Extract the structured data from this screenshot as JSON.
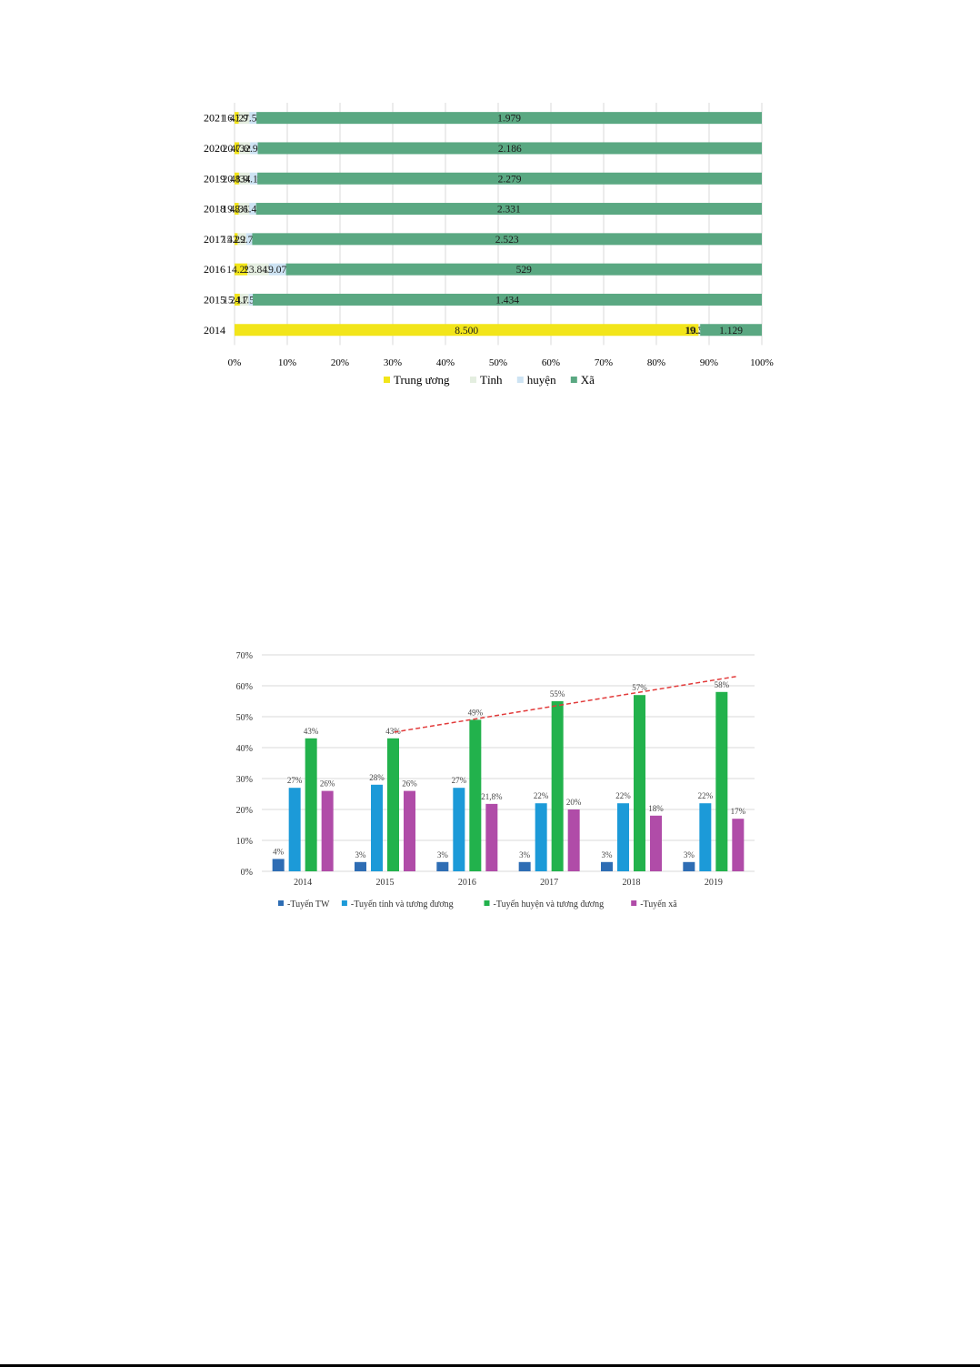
{
  "chart_data": [
    {
      "type": "bar",
      "orientation": "horizontal",
      "stacked": "percent",
      "categories": [
        "2021",
        "2020",
        "2019",
        "2018",
        "2017",
        "2016",
        "2015",
        "2014"
      ],
      "series": [
        {
          "name": "Trung ương",
          "color": "#f2e51a",
          "values": [
            16.351,
            20.032,
            20.182,
            19.268,
            15.415,
            14.296,
            15.105,
            8.5
          ],
          "labels": [
            "16.351",
            "20.032",
            "20.182",
            "19.268",
            "15.415",
            "14.296",
            "15.105",
            "8.500"
          ]
        },
        {
          "name": "Tỉnh",
          "color": "#e4eee0",
          "values": [
            41.917,
            47.699,
            48.923,
            48.639,
            42.273,
            23.843,
            24.762,
            19.37
          ],
          "labels": [
            "41.917",
            "47.699",
            "48.923",
            "48.639",
            "42.273",
            "23.843",
            "24.762",
            "19.370"
          ]
        },
        {
          "name": "huyện",
          "color": "#cde3f3",
          "values": [
            27.523,
            32.952,
            34.111,
            31.415,
            29.719,
            19.071,
            11.534,
            10.58
          ],
          "labels": [
            "27.523",
            "32.952",
            "34.111",
            "31.415",
            "29.719",
            "19.071",
            "11.534",
            "10.580"
          ]
        },
        {
          "name": "Xã",
          "color": "#5aa882",
          "values": [
            1.979,
            2.186,
            2.279,
            2.331,
            2.523,
            529,
            1.434,
            1.129
          ],
          "labels": [
            "1.979",
            "2.186",
            "2.279",
            "2.331",
            "2.523",
            "529",
            "1.434",
            "1.129"
          ]
        }
      ],
      "xticks": [
        "0%",
        "10%",
        "20%",
        "30%",
        "40%",
        "50%",
        "60%",
        "70%",
        "80%",
        "90%",
        "100%"
      ],
      "legend_position": "bottom",
      "xlim": [
        0,
        100
      ]
    },
    {
      "type": "bar",
      "categories": [
        "2014",
        "2015",
        "2016",
        "2017",
        "2018",
        "2019"
      ],
      "series": [
        {
          "name": "Tuyến TW",
          "color": "#2e6db4",
          "values": [
            4,
            3,
            3,
            3,
            3,
            3
          ],
          "labels": [
            "4%",
            "3%",
            "3%",
            "3%",
            "3%",
            "3%"
          ]
        },
        {
          "name": "Tuyến tỉnh và tương đương",
          "color": "#1c9ad8",
          "values": [
            27,
            28,
            27,
            22,
            22,
            22
          ],
          "labels": [
            "27%",
            "28%",
            "27%",
            "22%",
            "22%",
            "22%"
          ]
        },
        {
          "name": "Tuyến huyện và tương đương",
          "color": "#22b24c",
          "values": [
            43,
            43,
            49,
            55,
            57,
            58
          ],
          "labels": [
            "43%",
            "43%",
            "49%",
            "55%",
            "57%",
            "58%"
          ]
        },
        {
          "name": "Tuyến xã",
          "color": "#b04ca8",
          "values": [
            26,
            26,
            21.8,
            20,
            18,
            17
          ],
          "labels": [
            "26%",
            "26%",
            "21,8%",
            "20%",
            "18%",
            "17%"
          ]
        }
      ],
      "yticks": [
        "0%",
        "10%",
        "20%",
        "30%",
        "40%",
        "50%",
        "60%",
        "70%"
      ],
      "ylim": [
        0,
        70
      ],
      "grid": true,
      "legend_position": "bottom",
      "trendline": {
        "color": "#e23b3b",
        "style": "dashed",
        "from": {
          "x": "2015",
          "y": 45
        },
        "to": {
          "x": "2019",
          "y": 63
        }
      }
    }
  ]
}
